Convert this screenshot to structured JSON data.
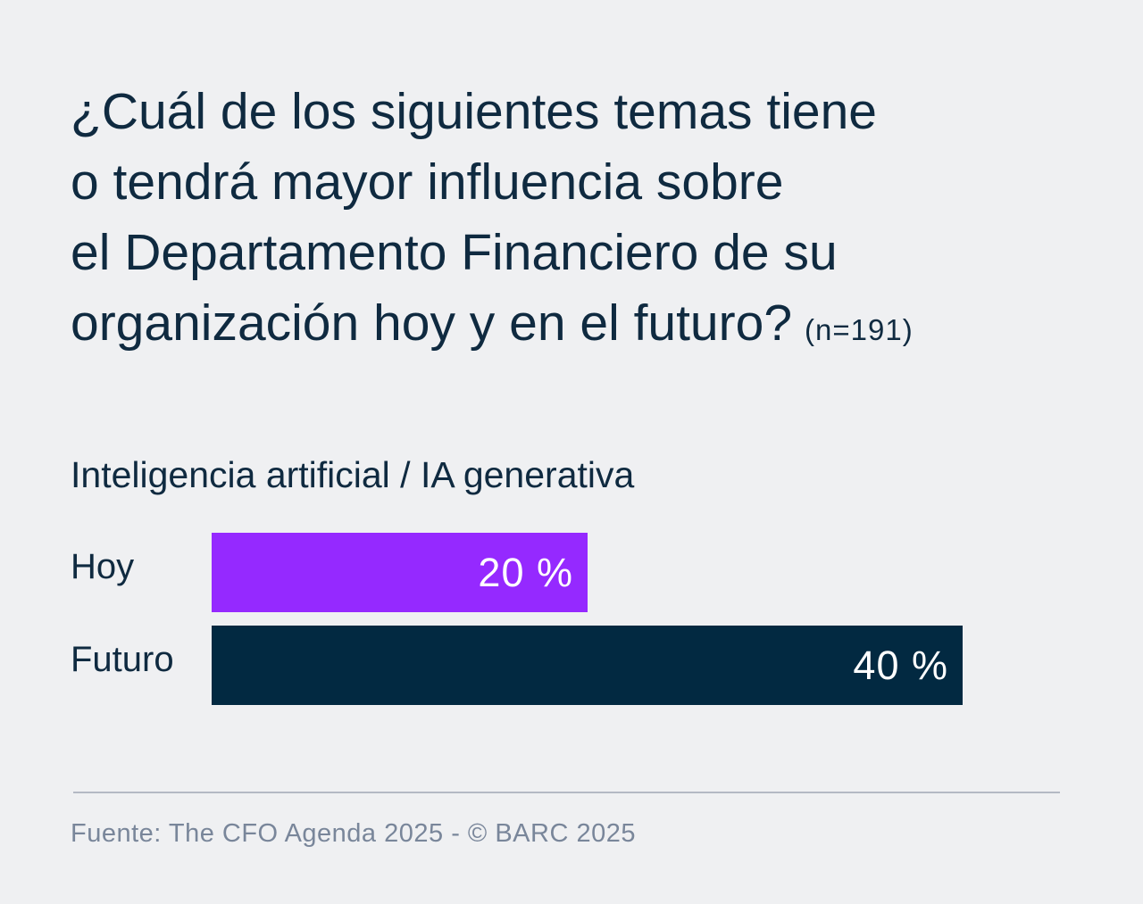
{
  "title": {
    "lines": [
      "¿Cuál de los siguientes temas tiene",
      "o tendrá mayor influencia sobre",
      "el Departamento Financiero de su",
      "organización hoy y en el futuro?"
    ],
    "sample_note": "(n=191)"
  },
  "footer": {
    "source": "Fuente: The CFO Agenda 2025 - © BARC 2025"
  },
  "colors": {
    "background": "#eff0f2",
    "text": "#0f2a40",
    "hoy_bar": "#9529ff",
    "futuro_bar": "#022941",
    "footer_text": "#79869a",
    "divider": "#b4b9c4"
  },
  "chart_data": {
    "type": "bar",
    "orientation": "horizontal",
    "title": "Inteligencia artificial / IA generativa",
    "categories": [
      "Hoy",
      "Futuro"
    ],
    "values": [
      20,
      40
    ],
    "value_labels": [
      "20 %",
      "40 %"
    ],
    "colors": [
      "#9529ff",
      "#022941"
    ],
    "xlim": [
      0,
      40
    ],
    "grid": false,
    "legend": "none"
  }
}
